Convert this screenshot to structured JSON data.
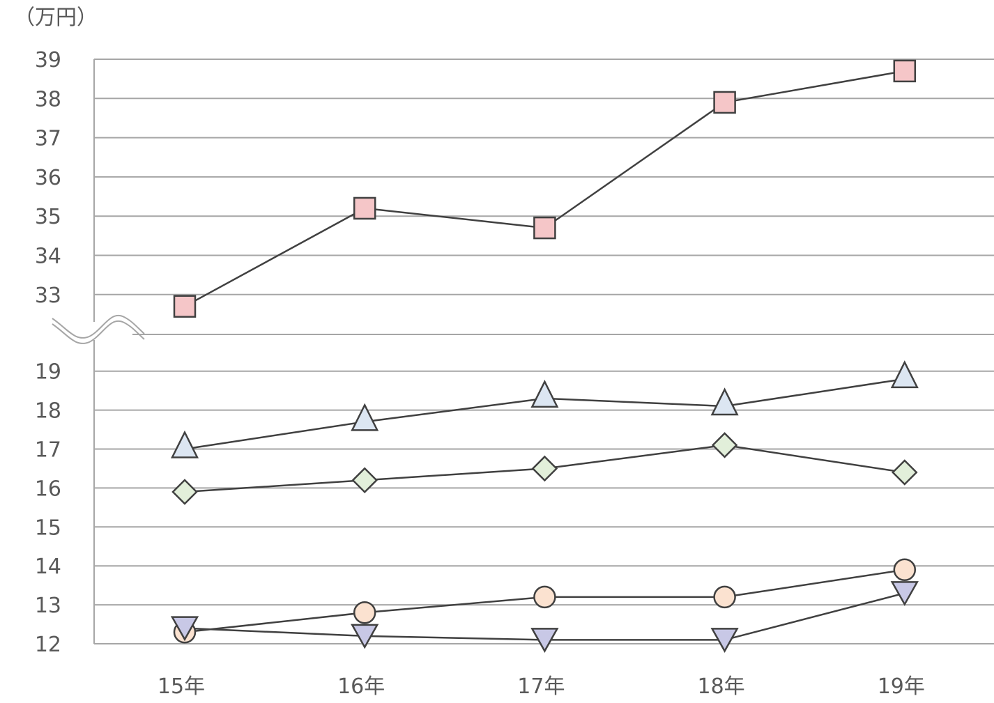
{
  "chart_data": {
    "type": "line",
    "unit_label": "（万円）",
    "categories": [
      "15年",
      "16年",
      "17年",
      "18年",
      "19年"
    ],
    "y_upper_ticks": [
      "33",
      "34",
      "35",
      "36",
      "37",
      "38",
      "39"
    ],
    "y_lower_ticks": [
      "12",
      "13",
      "14",
      "15",
      "16",
      "17",
      "18",
      "19"
    ],
    "axis_break": true,
    "grid": true,
    "series": [
      {
        "marker": "square",
        "color": "#f5c6c8",
        "values": [
          32.7,
          35.2,
          34.7,
          37.9,
          38.7
        ]
      },
      {
        "marker": "triangle-up",
        "color": "#dce6f2",
        "values": [
          17.0,
          17.7,
          18.3,
          18.1,
          18.8
        ]
      },
      {
        "marker": "diamond",
        "color": "#e2efda",
        "values": [
          15.9,
          16.2,
          16.5,
          17.1,
          16.4
        ]
      },
      {
        "marker": "circle",
        "color": "#fbe2d0",
        "values": [
          12.3,
          12.8,
          13.2,
          13.2,
          13.9
        ]
      },
      {
        "marker": "triangle-down",
        "color": "#c8c8e6",
        "values": [
          12.4,
          12.2,
          12.1,
          12.1,
          13.3
        ]
      }
    ]
  }
}
